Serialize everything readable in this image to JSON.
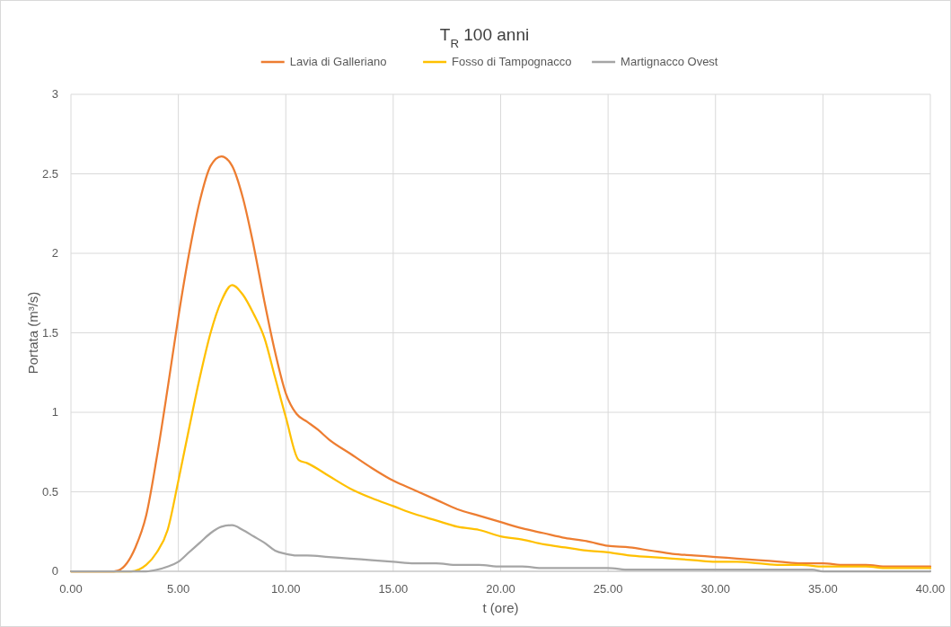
{
  "chart_data": {
    "type": "line",
    "title": "T$_{R}$ 100 anni",
    "xlabel": "t (ore)",
    "ylabel": "Portata (m³/s)",
    "xlim": [
      0,
      40
    ],
    "xticks": [
      {
        "value": 0,
        "label": "0.00"
      },
      {
        "value": 5,
        "label": "5.00"
      },
      {
        "value": 10,
        "label": "10.00"
      },
      {
        "value": 15,
        "label": "15.00"
      },
      {
        "value": 20,
        "label": "20.00"
      },
      {
        "value": 25,
        "label": "25.00"
      },
      {
        "value": 30,
        "label": "30.00"
      },
      {
        "value": 35,
        "label": "35.00"
      },
      {
        "value": 40,
        "label": "40.00"
      }
    ],
    "ylim": [
      0,
      3
    ],
    "yticks": [
      0,
      0.5,
      1,
      1.5,
      2,
      2.5,
      3
    ],
    "grid": true,
    "legend": "top",
    "marker": "none",
    "line_style": "solid",
    "series": [
      {
        "name": "Lavia di Galleriano",
        "color": "#ed7d31",
        "x": [
          0,
          1,
          2,
          2.2,
          3,
          3.5,
          4,
          4.5,
          5,
          5.5,
          6,
          6.5,
          7,
          7.5,
          8,
          8.5,
          9,
          9.5,
          10,
          10.5,
          11,
          11.5,
          12,
          13,
          14,
          15,
          16,
          17,
          18,
          19,
          20,
          21,
          22,
          23,
          24,
          25,
          26,
          27,
          28,
          29,
          30,
          31,
          32,
          33,
          34,
          35,
          36,
          37,
          38,
          39,
          40
        ],
        "values": [
          0,
          0,
          0,
          0.005,
          0.15,
          0.35,
          0.72,
          1.15,
          1.6,
          2.0,
          2.33,
          2.55,
          2.61,
          2.55,
          2.35,
          2.05,
          1.7,
          1.38,
          1.12,
          0.99,
          0.94,
          0.89,
          0.83,
          0.74,
          0.65,
          0.57,
          0.51,
          0.45,
          0.39,
          0.35,
          0.31,
          0.27,
          0.24,
          0.21,
          0.19,
          0.16,
          0.15,
          0.13,
          0.11,
          0.1,
          0.09,
          0.08,
          0.07,
          0.06,
          0.05,
          0.05,
          0.04,
          0.04,
          0.03,
          0.03,
          0.03
        ]
      },
      {
        "name": "Fosso di Tampognacco",
        "color": "#ffc000",
        "x": [
          0,
          2.8,
          3.5,
          4,
          4.5,
          5,
          5.5,
          6,
          6.5,
          7,
          7.5,
          8,
          8.5,
          9,
          9.5,
          10,
          10.6,
          11,
          12,
          13,
          14,
          15,
          16,
          17,
          18,
          19,
          20,
          21,
          22,
          23,
          24,
          25,
          26,
          27,
          28,
          29,
          30,
          31,
          32,
          33,
          34,
          35,
          36,
          37,
          38,
          40
        ],
        "values": [
          0,
          0,
          0.04,
          0.12,
          0.26,
          0.57,
          0.9,
          1.22,
          1.5,
          1.7,
          1.8,
          1.74,
          1.62,
          1.47,
          1.22,
          0.97,
          0.7,
          0.68,
          0.6,
          0.52,
          0.46,
          0.41,
          0.36,
          0.32,
          0.28,
          0.26,
          0.22,
          0.2,
          0.17,
          0.15,
          0.13,
          0.12,
          0.1,
          0.09,
          0.08,
          0.07,
          0.06,
          0.06,
          0.05,
          0.04,
          0.04,
          0.03,
          0.03,
          0.03,
          0.02,
          0.02
        ]
      },
      {
        "name": "Martignacco Ovest",
        "color": "#a5a5a5",
        "x": [
          0,
          3.5,
          4,
          4.5,
          5,
          5.5,
          6,
          6.5,
          7,
          7.5,
          8,
          8.5,
          9,
          9.5,
          10,
          10.5,
          11,
          12,
          13,
          14,
          15,
          16,
          17,
          18,
          19,
          20,
          21,
          22,
          25,
          26,
          34.5,
          35,
          40
        ],
        "values": [
          0,
          0,
          0.01,
          0.03,
          0.06,
          0.12,
          0.18,
          0.24,
          0.28,
          0.29,
          0.26,
          0.22,
          0.18,
          0.13,
          0.11,
          0.1,
          0.1,
          0.09,
          0.08,
          0.07,
          0.06,
          0.05,
          0.05,
          0.04,
          0.04,
          0.03,
          0.03,
          0.02,
          0.02,
          0.01,
          0.01,
          0,
          0
        ]
      }
    ]
  }
}
